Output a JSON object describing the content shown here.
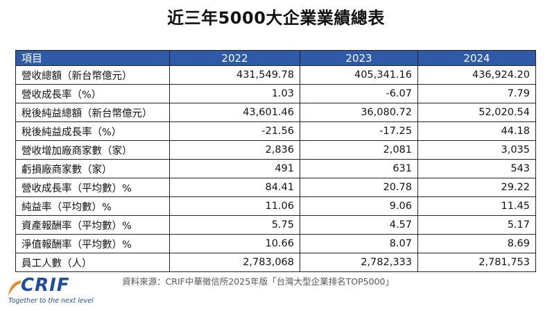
{
  "title": "近三年5000大企業業績總表",
  "table": {
    "header": {
      "label": "項目",
      "years": [
        "2022",
        "2023",
        "2024"
      ]
    },
    "rows": [
      {
        "label": "營收總額（新台幣億元）",
        "values": [
          "431,549.78",
          "405,341.16",
          "436,924.20"
        ]
      },
      {
        "label": "營收成長率（%）",
        "values": [
          "1.03",
          "-6.07",
          "7.79"
        ]
      },
      {
        "label": "稅後純益總額（新台幣億元）",
        "values": [
          "43,601.46",
          "36,080.72",
          "52,020.54"
        ]
      },
      {
        "label": "稅後純益成長率（%）",
        "values": [
          "-21.56",
          "-17.25",
          "44.18"
        ]
      },
      {
        "label": "營收增加廠商家數（家）",
        "values": [
          "2,836",
          "2,081",
          "3,035"
        ]
      },
      {
        "label": "虧損廠商家數（家）",
        "values": [
          "491",
          "631",
          "543"
        ]
      },
      {
        "label": "營收成長率（平均數）%",
        "values": [
          "84.41",
          "20.78",
          "29.22"
        ]
      },
      {
        "label": "純益率（平均數）%",
        "values": [
          "11.06",
          "9.06",
          "11.45"
        ]
      },
      {
        "label": "資產報酬率（平均數）%",
        "values": [
          "5.75",
          "4.57",
          "5.17"
        ]
      },
      {
        "label": "淨值報酬率（平均數）%",
        "values": [
          "10.66",
          "8.07",
          "8.69"
        ]
      },
      {
        "label": "員工人數（人）",
        "values": [
          "2,783,068",
          "2,782,333",
          "2,781,753"
        ]
      }
    ]
  },
  "source": "資料來源：CRIF中華徵信所2025年版「台灣大型企業排名TOP5000」",
  "logo": {
    "wordmark": "CRIF",
    "tagline": "Together to the next level",
    "color": "#1f4e9c"
  },
  "colors": {
    "header_bg": "#2e5aa7",
    "header_text": "#ffffff"
  }
}
